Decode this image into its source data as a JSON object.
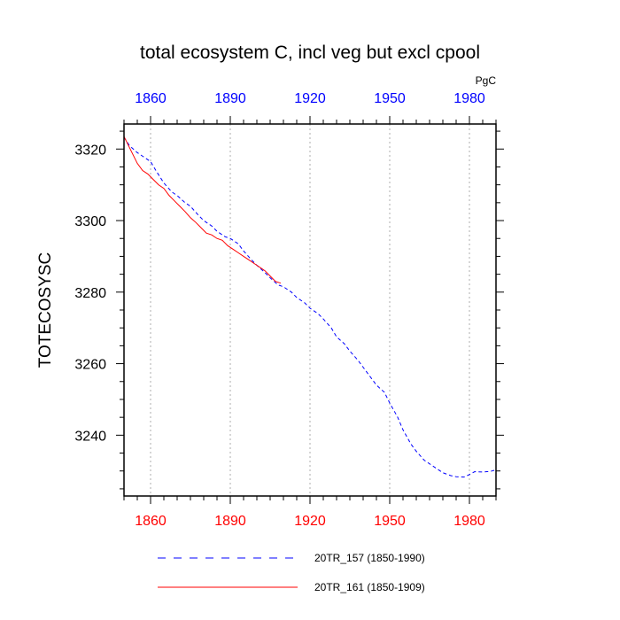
{
  "chart_data": {
    "type": "line",
    "title": "total ecosystem C, incl veg but excl cpool",
    "units_label": "PgC",
    "ylabel": "TOTECOSYSC",
    "xlabel": "",
    "xlim": [
      1850,
      1990
    ],
    "ylim": [
      3223,
      3327
    ],
    "x_ticks": [
      1860,
      1890,
      1920,
      1950,
      1980
    ],
    "y_ticks": [
      3240,
      3260,
      3280,
      3300,
      3320
    ],
    "x_tick_labels": [
      "1860",
      "1890",
      "1920",
      "1950",
      "1980"
    ],
    "y_tick_labels": [
      "3240",
      "3260",
      "3280",
      "3300",
      "3320"
    ],
    "bottom_axis_color": "#ff0000",
    "top_axis_color": "#0000ff",
    "grid": "vertical dotted at x ticks",
    "legend_position": "bottom",
    "series": [
      {
        "name": "20TR_157 (1850-1990)",
        "color": "#0000ff",
        "dash": "dashed",
        "x": [
          1850,
          1852,
          1855,
          1858,
          1860,
          1862,
          1865,
          1868,
          1870,
          1873,
          1875,
          1878,
          1880,
          1883,
          1885,
          1888,
          1890,
          1893,
          1895,
          1898,
          1900,
          1903,
          1905,
          1908,
          1910,
          1913,
          1915,
          1918,
          1920,
          1923,
          1925,
          1928,
          1930,
          1933,
          1935,
          1938,
          1940,
          1943,
          1945,
          1948,
          1950,
          1953,
          1955,
          1958,
          1960,
          1963,
          1965,
          1968,
          1970,
          1973,
          1975,
          1978,
          1980,
          1982,
          1985,
          1988,
          1990
        ],
        "values": [
          3323.3,
          3321.0,
          3319.0,
          3317.5,
          3316.5,
          3314.0,
          3310.5,
          3308.0,
          3307.0,
          3305.0,
          3304.0,
          3301.5,
          3300.0,
          3298.5,
          3297.0,
          3295.5,
          3295.0,
          3293.5,
          3291.5,
          3289.0,
          3287.5,
          3285.5,
          3284.0,
          3282.0,
          3281.5,
          3280.0,
          3278.5,
          3277.0,
          3275.5,
          3274.0,
          3272.5,
          3270.0,
          3267.5,
          3265.5,
          3263.5,
          3261.0,
          3259.0,
          3256.0,
          3254.0,
          3252.0,
          3249.0,
          3245.0,
          3241.5,
          3237.5,
          3235.5,
          3233.0,
          3232.0,
          3230.5,
          3229.5,
          3228.7,
          3228.4,
          3228.3,
          3229.0,
          3229.8,
          3229.7,
          3229.9,
          3230.3
        ]
      },
      {
        "name": "20TR_161 (1850-1909)",
        "color": "#ff0000",
        "dash": "solid",
        "x": [
          1850,
          1851,
          1853,
          1855,
          1857,
          1859,
          1861,
          1863,
          1865,
          1867,
          1869,
          1871,
          1873,
          1875,
          1877,
          1879,
          1881,
          1883,
          1885,
          1887,
          1889,
          1891,
          1893,
          1895,
          1897,
          1899,
          1901,
          1903,
          1905,
          1907,
          1909
        ],
        "values": [
          3323.5,
          3322.0,
          3319.0,
          3316.0,
          3314.0,
          3313.0,
          3311.5,
          3310.0,
          3309.0,
          3307.0,
          3305.5,
          3304.0,
          3302.5,
          3300.8,
          3299.5,
          3298.0,
          3296.5,
          3296.0,
          3295.0,
          3294.5,
          3293.0,
          3292.0,
          3291.0,
          3290.0,
          3289.0,
          3288.0,
          3287.0,
          3286.0,
          3284.5,
          3283.0,
          3282.5
        ]
      }
    ]
  }
}
